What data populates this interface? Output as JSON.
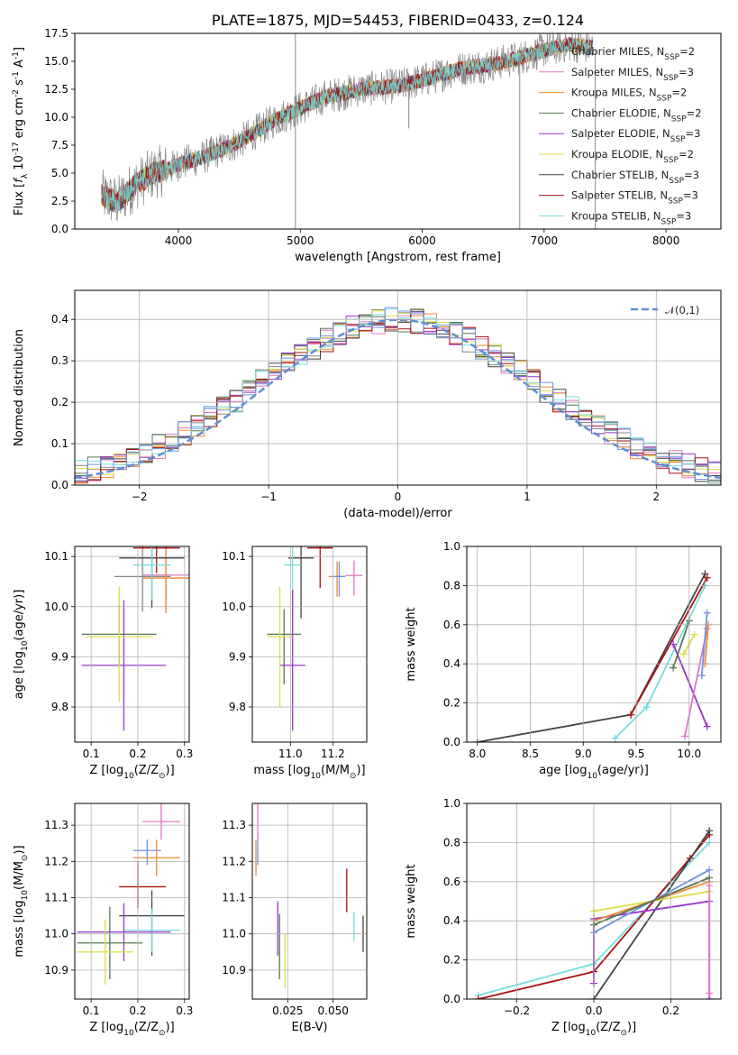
{
  "chart_data": [
    {
      "panel": "spectrum",
      "type": "line",
      "title": "PLATE=1875, MJD=54453, FIBERID=0433, z=0.124",
      "xlabel": "wavelength [Angstrom, rest frame]",
      "ylabel": "Flux [f_λ 10^-17 erg cm^-2 s^-1 A^-1]",
      "xlim": [
        3150,
        8450
      ],
      "ylim": [
        0,
        17.5
      ],
      "xticks": [
        "4000",
        "5000",
        "6000",
        "7000",
        "8000"
      ],
      "yticks": [
        "0.0",
        "2.5",
        "5.0",
        "7.5",
        "10.0",
        "12.5",
        "15.0",
        "17.5"
      ],
      "legend": [
        {
          "label": "Chabrier MILES, N_SSP=2",
          "color": "#888888"
        },
        {
          "label": "Salpeter MILES, N_SSP=3",
          "color": "#e377c2"
        },
        {
          "label": "Kroupa MILES, N_SSP=2",
          "color": "#ee8833"
        },
        {
          "label": "Chabrier ELODIE, N_SSP=2",
          "color": "#557755"
        },
        {
          "label": "Salpeter ELODIE, N_SSP=3",
          "color": "#9932cc"
        },
        {
          "label": "Kroupa ELODIE, N_SSP=2",
          "color": "#dddd44"
        },
        {
          "label": "Chabrier STELIB, N_SSP=3",
          "color": "#444444"
        },
        {
          "label": "Salpeter STELIB, N_SSP=3",
          "color": "#aa1111"
        },
        {
          "label": "Kroupa STELIB, N_SSP=3",
          "color": "#77dddd"
        }
      ],
      "continuum": [
        [
          3370,
          3.0
        ],
        [
          3500,
          2.4
        ],
        [
          3650,
          4.0
        ],
        [
          3800,
          5.0
        ],
        [
          3950,
          5.5
        ],
        [
          4000,
          5.8
        ],
        [
          4200,
          6.4
        ],
        [
          4500,
          7.8
        ],
        [
          4800,
          9.8
        ],
        [
          5000,
          10.8
        ],
        [
          5200,
          11.8
        ],
        [
          5500,
          12.5
        ],
        [
          5800,
          12.8
        ],
        [
          6000,
          13.3
        ],
        [
          6300,
          14.3
        ],
        [
          6600,
          14.8
        ],
        [
          6800,
          15.3
        ],
        [
          7000,
          16.0
        ],
        [
          7200,
          16.5
        ],
        [
          7400,
          16.2
        ]
      ],
      "spikes": [
        {
          "x": 4960,
          "y": [
            0,
            17.5
          ]
        },
        {
          "x": 5890,
          "y": [
            9.0,
            12.8
          ]
        },
        {
          "x": 6800,
          "y": [
            0,
            15.5
          ]
        },
        {
          "x": 7420,
          "y": [
            0,
            16.0
          ]
        }
      ]
    },
    {
      "panel": "residuals",
      "type": "histogram",
      "xlabel": "(data-model)/error",
      "ylabel": "Normed distribution",
      "xlim": [
        -2.5,
        2.5
      ],
      "ylim": [
        0,
        0.47
      ],
      "xticks": [
        "−2",
        "−1",
        "0",
        "1",
        "2"
      ],
      "yticks": [
        "0.0",
        "0.1",
        "0.2",
        "0.3",
        "0.4"
      ],
      "reference": {
        "label": "𝒩(0,1)",
        "color": "#5a8ed6"
      },
      "bin_width": 0.1
    },
    {
      "panel": "age-vs-Z",
      "type": "errorbar",
      "xlabel": "Z [log10(Z/Z⊙)]",
      "ylabel": "age [log10(age/yr)]",
      "xlim": [
        0.065,
        0.31
      ],
      "ylim": [
        9.73,
        10.12
      ],
      "xticks": [
        "0.1",
        "0.2",
        "0.3"
      ],
      "yticks": [
        "9.8",
        "9.9",
        "10.0",
        "10.1"
      ],
      "points": [
        {
          "color": "#888888",
          "x": 0.21,
          "xerr": [
            0.06,
            0.06
          ],
          "y": 10.06,
          "yerr": [
            0.07,
            0.07
          ]
        },
        {
          "color": "#e377c2",
          "x": 0.26,
          "xerr": [
            0.05,
            0.05
          ],
          "y": 10.063,
          "yerr": [
            0.07,
            0.07
          ]
        },
        {
          "color": "#ee8833",
          "x": 0.26,
          "xerr": [
            0.05,
            0.05
          ],
          "y": 10.057,
          "yerr": [
            0.07,
            0.07
          ]
        },
        {
          "color": "#557755",
          "x": 0.16,
          "xerr": [
            0.08,
            0.08
          ],
          "y": 9.945,
          "yerr": [
            0.06,
            0.06
          ]
        },
        {
          "color": "#9932cc",
          "x": 0.17,
          "xerr": [
            0.09,
            0.09
          ],
          "y": 9.883,
          "yerr": [
            0.13,
            0.13
          ]
        },
        {
          "color": "#dddd44",
          "x": 0.16,
          "xerr": [
            0.07,
            0.07
          ],
          "y": 9.94,
          "yerr": [
            0.13,
            0.1
          ]
        },
        {
          "color": "#444444",
          "x": 0.23,
          "xerr": [
            0.07,
            0.07
          ],
          "y": 10.097,
          "yerr": [
            0.1,
            0.05
          ]
        },
        {
          "color": "#aa1111",
          "x": 0.24,
          "xerr": [
            0.05,
            0.05
          ],
          "y": 10.117,
          "yerr": [
            0.05,
            0.05
          ]
        },
        {
          "color": "#77dddd",
          "x": 0.23,
          "xerr": [
            0.04,
            0.04
          ],
          "y": 10.083,
          "yerr": [
            0.07,
            0.05
          ]
        }
      ]
    },
    {
      "panel": "age-vs-mass",
      "type": "errorbar",
      "xlabel": "mass [log10(M/M⊙)]",
      "ylabel": "",
      "xlim": [
        10.82,
        11.36
      ],
      "ylim": [
        9.73,
        10.12
      ],
      "xticks": [
        "11.0",
        "11.2"
      ],
      "yticks": [
        "9.8",
        "9.9",
        "10.0",
        "10.1"
      ],
      "points": [
        {
          "color": "#e377c2",
          "x": 11.3,
          "xerr": [
            0.04,
            0.04
          ],
          "y": 10.062,
          "yerr": [
            0.04,
            0.03
          ]
        },
        {
          "color": "#ee8833",
          "x": 11.22,
          "xerr": [
            0.04,
            0.04
          ],
          "y": 10.06,
          "yerr": [
            0.04,
            0.03
          ]
        },
        {
          "color": "#6f93e0",
          "x": 11.23,
          "xerr": [
            0.03,
            0.03
          ],
          "y": 10.06,
          "yerr": [
            0.04,
            0.03
          ]
        },
        {
          "color": "#aa1111",
          "x": 11.14,
          "xerr": [
            0.06,
            0.06
          ],
          "y": 10.117,
          "yerr": [
            0.08,
            0.07
          ]
        },
        {
          "color": "#444444",
          "x": 11.05,
          "xerr": [
            0.06,
            0.06
          ],
          "y": 10.097,
          "yerr": [
            0.12,
            0.06
          ]
        },
        {
          "color": "#77dddd",
          "x": 11.01,
          "xerr": [
            0.04,
            0.04
          ],
          "y": 10.083,
          "yerr": [
            0.1,
            0.05
          ]
        },
        {
          "color": "#557755",
          "x": 10.97,
          "xerr": [
            0.08,
            0.08
          ],
          "y": 9.945,
          "yerr": [
            0.1,
            0.05
          ]
        },
        {
          "color": "#9932cc",
          "x": 11.01,
          "xerr": [
            0.06,
            0.06
          ],
          "y": 9.883,
          "yerr": [
            0.13,
            0.15
          ]
        },
        {
          "color": "#dddd44",
          "x": 10.95,
          "xerr": [
            0.06,
            0.06
          ],
          "y": 9.94,
          "yerr": [
            0.14,
            0.1
          ]
        }
      ]
    },
    {
      "panel": "mass-weight-vs-age",
      "type": "line",
      "xlabel": "age [log10(age/yr)]",
      "ylabel": "mass weight",
      "xlim": [
        7.9,
        10.3
      ],
      "ylim": [
        0,
        1.0
      ],
      "xticks": [
        "8.0",
        "8.5",
        "9.0",
        "9.5",
        "10.0"
      ],
      "yticks": [
        "0.0",
        "0.2",
        "0.4",
        "0.6",
        "0.8",
        "1.0"
      ],
      "series": [
        {
          "color": "#444444",
          "x": [
            8.0,
            9.45,
            10.15
          ],
          "y": [
            0.0,
            0.14,
            0.86
          ]
        },
        {
          "color": "#aa1111",
          "x": [
            9.45,
            10.17
          ],
          "y": [
            0.14,
            0.84
          ]
        },
        {
          "color": "#77dddd",
          "x": [
            9.3,
            9.6,
            10.15
          ],
          "y": [
            0.02,
            0.18,
            0.8
          ]
        },
        {
          "color": "#9932cc",
          "x": [
            9.85,
            10.17
          ],
          "y": [
            0.5,
            0.08
          ]
        },
        {
          "color": "#e377c2",
          "x": [
            9.96,
            10.17
          ],
          "y": [
            0.03,
            0.58
          ]
        },
        {
          "color": "#ee8833",
          "x": [
            10.15,
            10.18
          ],
          "y": [
            0.4,
            0.6
          ]
        },
        {
          "color": "#6f93e0",
          "x": [
            10.12,
            10.17
          ],
          "y": [
            0.34,
            0.66
          ]
        },
        {
          "color": "#557755",
          "x": [
            9.85,
            10.0
          ],
          "y": [
            0.38,
            0.62
          ]
        },
        {
          "color": "#dddd44",
          "x": [
            9.95,
            10.05
          ],
          "y": [
            0.45,
            0.55
          ]
        }
      ]
    },
    {
      "panel": "mass-vs-Z",
      "type": "errorbar",
      "xlabel": "Z [log10(Z/Z⊙)]",
      "ylabel": "mass [log10(M/M⊙)]",
      "xlim": [
        0.065,
        0.31
      ],
      "ylim": [
        10.82,
        11.36
      ],
      "xticks": [
        "0.1",
        "0.2",
        "0.3"
      ],
      "yticks": [
        "10.9",
        "11.0",
        "11.1",
        "11.2",
        "11.3"
      ],
      "points": [
        {
          "color": "#e377c2",
          "x": 0.25,
          "xerr": [
            0.04,
            0.04
          ],
          "y": 11.31,
          "yerr": [
            0.05,
            0.05
          ]
        },
        {
          "color": "#6f93e0",
          "x": 0.22,
          "xerr": [
            0.03,
            0.03
          ],
          "y": 11.23,
          "yerr": [
            0.04,
            0.03
          ]
        },
        {
          "color": "#ee8833",
          "x": 0.24,
          "xerr": [
            0.05,
            0.05
          ],
          "y": 11.21,
          "yerr": [
            0.05,
            0.05
          ]
        },
        {
          "color": "#aa1111",
          "x": 0.2,
          "xerr": [
            0.04,
            0.06
          ],
          "y": 11.13,
          "yerr": [
            0.06,
            0.07
          ]
        },
        {
          "color": "#444444",
          "x": 0.23,
          "xerr": [
            0.07,
            0.07
          ],
          "y": 11.05,
          "yerr": [
            0.11,
            0.07
          ]
        },
        {
          "color": "#77dddd",
          "x": 0.23,
          "xerr": [
            0.06,
            0.06
          ],
          "y": 11.01,
          "yerr": [
            0.06,
            0.06
          ]
        },
        {
          "color": "#9932cc",
          "x": 0.17,
          "xerr": [
            0.1,
            0.1
          ],
          "y": 11.005,
          "yerr": [
            0.08,
            0.08
          ]
        },
        {
          "color": "#557755",
          "x": 0.14,
          "xerr": [
            0.07,
            0.07
          ],
          "y": 10.975,
          "yerr": [
            0.1,
            0.1
          ]
        },
        {
          "color": "#dddd44",
          "x": 0.13,
          "xerr": [
            0.06,
            0.06
          ],
          "y": 10.95,
          "yerr": [
            0.09,
            0.09
          ]
        }
      ]
    },
    {
      "panel": "mass-vs-EBV",
      "type": "errorbar",
      "xlabel": "E(B-V)",
      "ylabel": "",
      "xlim": [
        0.0055,
        0.0685
      ],
      "ylim": [
        10.82,
        11.36
      ],
      "xticks": [
        "0.025",
        "0.050"
      ],
      "yticks": [
        "10.9",
        "11.0",
        "11.1",
        "11.2",
        "11.3"
      ],
      "points": [
        {
          "color": "#e377c2",
          "x": 0.0085,
          "y": 11.31,
          "yerr": [
            0.05,
            0.05
          ]
        },
        {
          "color": "#ee8833",
          "x": 0.0075,
          "y": 11.21,
          "yerr": [
            0.05,
            0.05
          ]
        },
        {
          "color": "#6f93e0",
          "x": 0.0085,
          "y": 11.23,
          "yerr": [
            0.04,
            0.03
          ]
        },
        {
          "color": "#9932cc",
          "x": 0.0195,
          "y": 11.01,
          "yerr": [
            0.07,
            0.08
          ]
        },
        {
          "color": "#557755",
          "x": 0.0205,
          "y": 10.975,
          "yerr": [
            0.1,
            0.08
          ]
        },
        {
          "color": "#dddd44",
          "x": 0.0235,
          "y": 10.95,
          "yerr": [
            0.1,
            0.05
          ]
        },
        {
          "color": "#aa1111",
          "x": 0.0575,
          "y": 11.12,
          "yerr": [
            0.06,
            0.06
          ]
        },
        {
          "color": "#77dddd",
          "x": 0.0615,
          "y": 11.02,
          "yerr": [
            0.04,
            0.04
          ]
        },
        {
          "color": "#444444",
          "x": 0.0665,
          "y": 11.0,
          "yerr": [
            0.05,
            0.05
          ]
        }
      ]
    },
    {
      "panel": "mass-weight-vs-Z",
      "type": "line",
      "xlabel": "Z [log10(Z/Z⊙)]",
      "ylabel": "mass weight",
      "xlim": [
        -0.33,
        0.33
      ],
      "ylim": [
        0,
        1.0
      ],
      "xticks": [
        "−0.2",
        "0.0",
        "0.2"
      ],
      "yticks": [
        "0.0",
        "0.2",
        "0.4",
        "0.6",
        "0.8",
        "1.0"
      ],
      "series": [
        {
          "color": "#77dddd",
          "x": [
            -0.3,
            0.0,
            0.3
          ],
          "y": [
            0.02,
            0.18,
            0.8
          ]
        },
        {
          "color": "#aa1111",
          "x": [
            -0.3,
            0.0,
            0.25,
            0.3
          ],
          "y": [
            0.0,
            0.14,
            0.72,
            0.84
          ]
        },
        {
          "color": "#444444",
          "x": [
            0.0,
            0.3
          ],
          "y": [
            0.0,
            0.86
          ]
        },
        {
          "color": "#9932cc",
          "x": [
            0.0,
            0.0,
            0.3,
            0.3
          ],
          "y": [
            0.08,
            0.41,
            0.5,
            0.0
          ]
        },
        {
          "color": "#dddd44",
          "x": [
            0.0,
            0.3
          ],
          "y": [
            0.45,
            0.55
          ]
        },
        {
          "color": "#ee8833",
          "x": [
            0.0,
            0.3
          ],
          "y": [
            0.4,
            0.6
          ]
        },
        {
          "color": "#6f93e0",
          "x": [
            0.0,
            0.3
          ],
          "y": [
            0.34,
            0.66
          ]
        },
        {
          "color": "#557755",
          "x": [
            0.0,
            0.3
          ],
          "y": [
            0.38,
            0.62
          ]
        },
        {
          "color": "#e377c2",
          "x": [
            0.3,
            0.3
          ],
          "y": [
            0.03,
            0.58
          ]
        }
      ]
    }
  ]
}
